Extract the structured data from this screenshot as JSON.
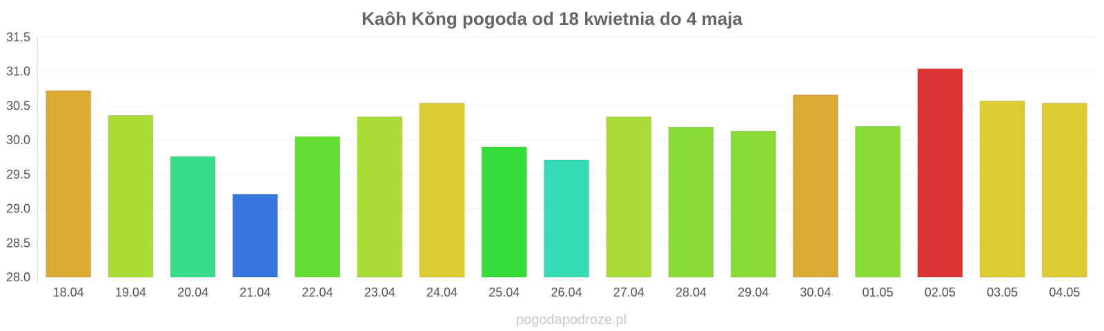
{
  "chart_data": {
    "type": "bar",
    "title": "Kaôh Kŏng pogoda od 18 kwietnia do 4 maja",
    "xlabel": "",
    "ylabel": "",
    "categories": [
      "18.04",
      "19.04",
      "20.04",
      "21.04",
      "22.04",
      "23.04",
      "24.04",
      "25.04",
      "26.04",
      "27.04",
      "28.04",
      "29.04",
      "30.04",
      "01.05",
      "02.05",
      "03.05",
      "04.05"
    ],
    "values": [
      30.72,
      30.36,
      29.76,
      29.21,
      30.05,
      30.34,
      30.54,
      29.9,
      29.71,
      30.34,
      30.19,
      30.13,
      30.66,
      30.2,
      31.04,
      30.57,
      30.54
    ],
    "bar_colors": [
      "#dca935",
      "#abdc33",
      "#35dc8a",
      "#3476dc",
      "#65dc35",
      "#abdc35",
      "#dccb35",
      "#35dc37",
      "#35dcb6",
      "#abdc35",
      "#89dc35",
      "#89dc35",
      "#dca935",
      "#89dc35",
      "#dc3535",
      "#dccb35",
      "#dccb35"
    ],
    "ylim": [
      28.0,
      31.5
    ],
    "yticks": [
      "28.0",
      "28.5",
      "29.0",
      "29.5",
      "30.0",
      "30.5",
      "31.0",
      "31.5"
    ],
    "grid": true,
    "legend": "none"
  },
  "watermark": "pogodapodroze.pl"
}
